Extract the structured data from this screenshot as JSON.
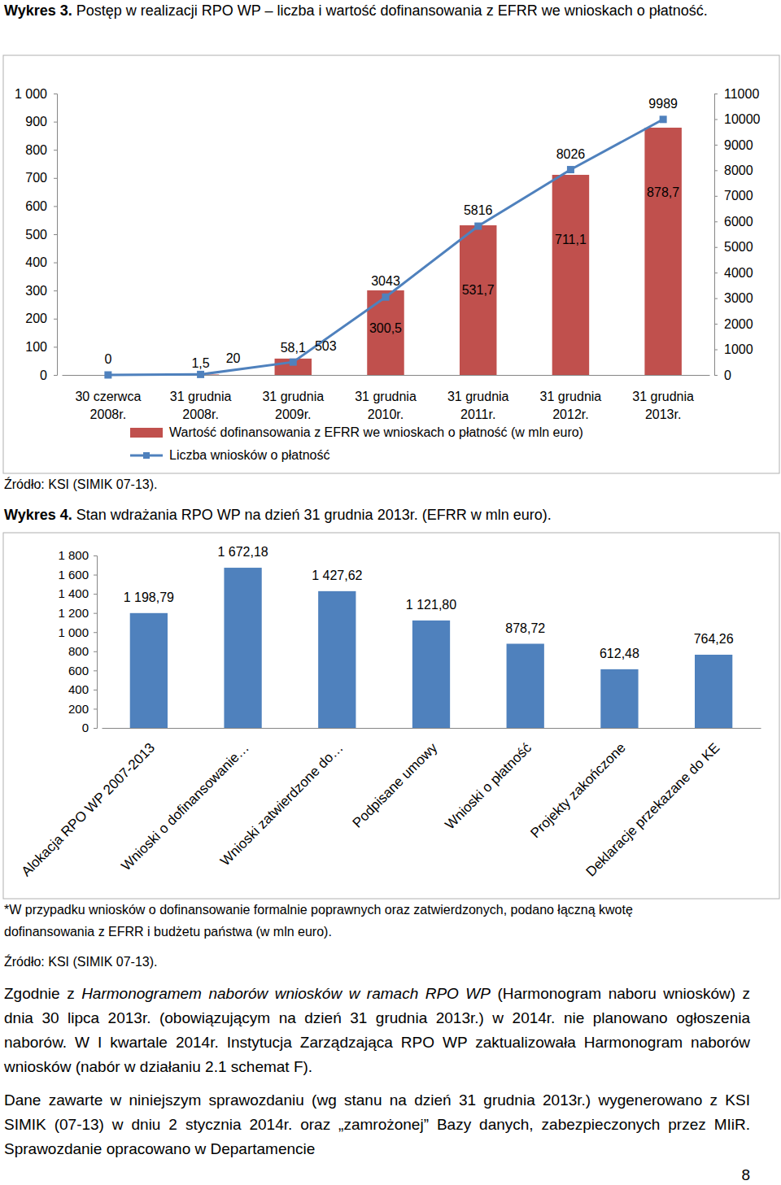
{
  "figures": [
    {
      "label": "Wykres 3.",
      "caption": "Postęp w realizacji RPO WP – liczba i wartość dofinansowania z EFRR we wnioskach o płatność."
    },
    {
      "label": "Wykres 4.",
      "caption": "Stan wdrażania RPO WP na dzień 31 grudnia 2013r. (EFRR w mln euro)."
    }
  ],
  "chart_data": [
    {
      "type": "bar",
      "categories": [
        "30 czerwca 2008r.",
        "31 grudnia 2008r.",
        "31 grudnia 2009r.",
        "31 grudnia 2010r.",
        "31 grudnia 2011r.",
        "31 grudnia 2012r.",
        "31 grudnia 2013r."
      ],
      "series": [
        {
          "name": "Wartość dofinansowania z EFRR we wnioskach o płatność (w mln euro)",
          "type": "bar",
          "color": "#c0504d",
          "values": [
            null,
            1.5,
            58.1,
            300.5,
            531.7,
            711.1,
            878.7
          ],
          "value_labels": [
            null,
            "1,5",
            "58,1",
            "300,5",
            "531,7",
            "711,1",
            "878,7"
          ]
        },
        {
          "name": "Liczba wniosków o płatność",
          "type": "line",
          "color": "#4f81bd",
          "marker": "square",
          "axis": "y2",
          "values": [
            0,
            20,
            503,
            3043,
            5816,
            8026,
            9989
          ]
        }
      ],
      "ylim": [
        0,
        1000
      ],
      "yticks": [
        0,
        100,
        200,
        300,
        400,
        500,
        600,
        700,
        800,
        900,
        {
          "value": 1000,
          "label": "1 000"
        }
      ],
      "y2lim": [
        0,
        11000
      ],
      "y2ticks": [
        0,
        1000,
        2000,
        3000,
        4000,
        5000,
        6000,
        7000,
        8000,
        9000,
        10000,
        11000
      ],
      "data_labels": true,
      "grid": false,
      "legend": "bottom"
    },
    {
      "type": "bar",
      "categories": [
        "Alokacja RPO WP 2007-2013",
        "Wnioski o dofinansowanie…",
        "Wnioski zatwierdzone do…",
        "Podpisane umowy",
        "Wnioski o płatność",
        "Projekty zakończone",
        "Deklaracje przekazane do KE"
      ],
      "values": [
        1198.79,
        1672.18,
        1427.62,
        1121.8,
        878.72,
        612.48,
        764.26
      ],
      "value_labels": [
        "1 198,79",
        "1 672,18",
        "1 427,62",
        "1 121,80",
        "878,72",
        "612,48",
        "764,26"
      ],
      "color": "#4f81bd",
      "ylim": [
        0,
        1800
      ],
      "yticks": [
        0,
        200,
        400,
        600,
        800,
        {
          "value": 1000,
          "label": "1 000"
        },
        {
          "value": 1200,
          "label": "1 200"
        },
        {
          "value": 1400,
          "label": "1 400"
        },
        {
          "value": 1600,
          "label": "1 600"
        },
        {
          "value": 1800,
          "label": "1 800"
        }
      ],
      "data_labels": true,
      "grid": false
    }
  ],
  "sources": [
    "Źródło: KSI (SIMIK 07-13).",
    "Źródło: KSI (SIMIK 07-13)."
  ],
  "footnote": "*W przypadku wniosków o dofinansowanie formalnie poprawnych oraz zatwierdzonych, podano łączną kwotę dofinansowania z EFRR i budżetu państwa (w mln euro).",
  "paragraphs": [
    {
      "before": "Zgodnie z ",
      "emphasis": "Harmonogramem naborów wniosków w ramach RPO WP",
      "after": " (Harmonogram naboru wniosków) z dnia 30 lipca 2013r. (obowiązującym na dzień 31 grudnia 2013r.) w 2014r. nie planowano ogłoszenia naborów. W I kwartale 2014r. Instytucja Zarządzająca RPO WP zaktualizowała Harmonogram naborów wniosków (nabór w działaniu 2.1 schemat F)."
    },
    {
      "text": "Dane zawarte w niniejszym sprawozdaniu (wg stanu na dzień 31 grudnia 2013r.) wygenerowano z KSI SIMIK (07-13) w dniu 2 stycznia 2014r. oraz „zamrożonej” Bazy danych, zabezpieczonych przez MIiR. Sprawozdanie opracowano w Departamencie"
    }
  ],
  "page_number": 8
}
